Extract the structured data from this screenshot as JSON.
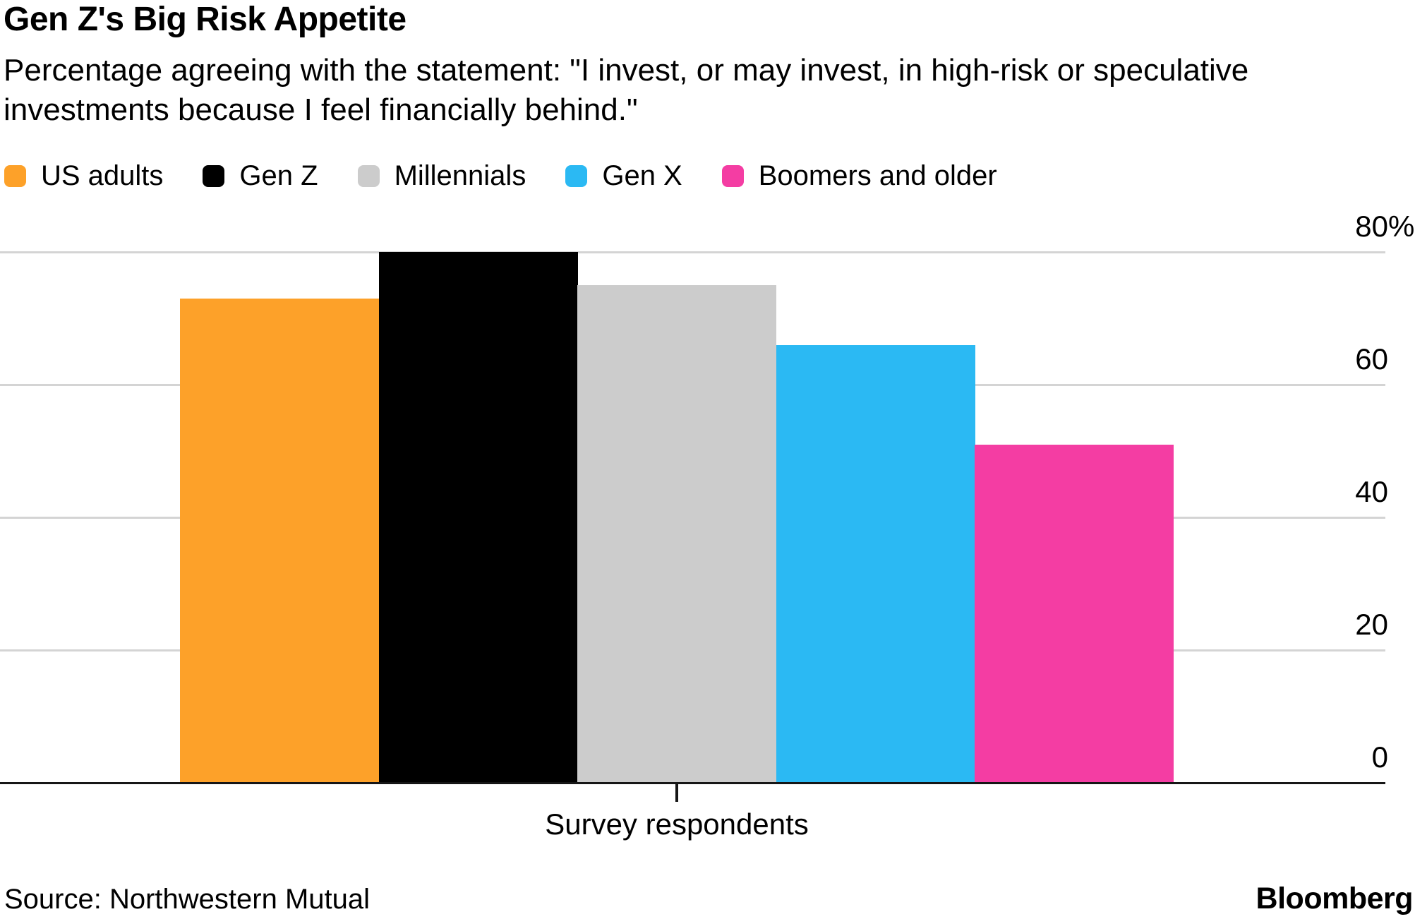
{
  "chart_data": {
    "type": "bar",
    "title": "Gen Z's Big Risk Appetite",
    "subtitle": "Percentage agreeing with the statement: \"I invest, or may invest, in high-risk or speculative investments because I feel financially behind.\"",
    "categories": [
      "US adults",
      "Gen Z",
      "Millennials",
      "Gen X",
      "Boomers and older"
    ],
    "values": [
      73,
      80,
      75,
      66,
      51
    ],
    "colors": [
      "#FDA129",
      "#000000",
      "#CCCCCC",
      "#2BB9F3",
      "#F43DA3"
    ],
    "xlabel": "Survey respondents",
    "ylabel": "",
    "ylim": [
      0,
      80
    ],
    "yticks": [
      0,
      20,
      40,
      60,
      80
    ],
    "ytick_labels": [
      "0",
      "20",
      "40",
      "60",
      "80%"
    ],
    "grid": true,
    "legend_position": "top",
    "bar_gap": 0
  },
  "footer": {
    "source": "Source: Northwestern Mutual",
    "brand": "Bloomberg"
  }
}
